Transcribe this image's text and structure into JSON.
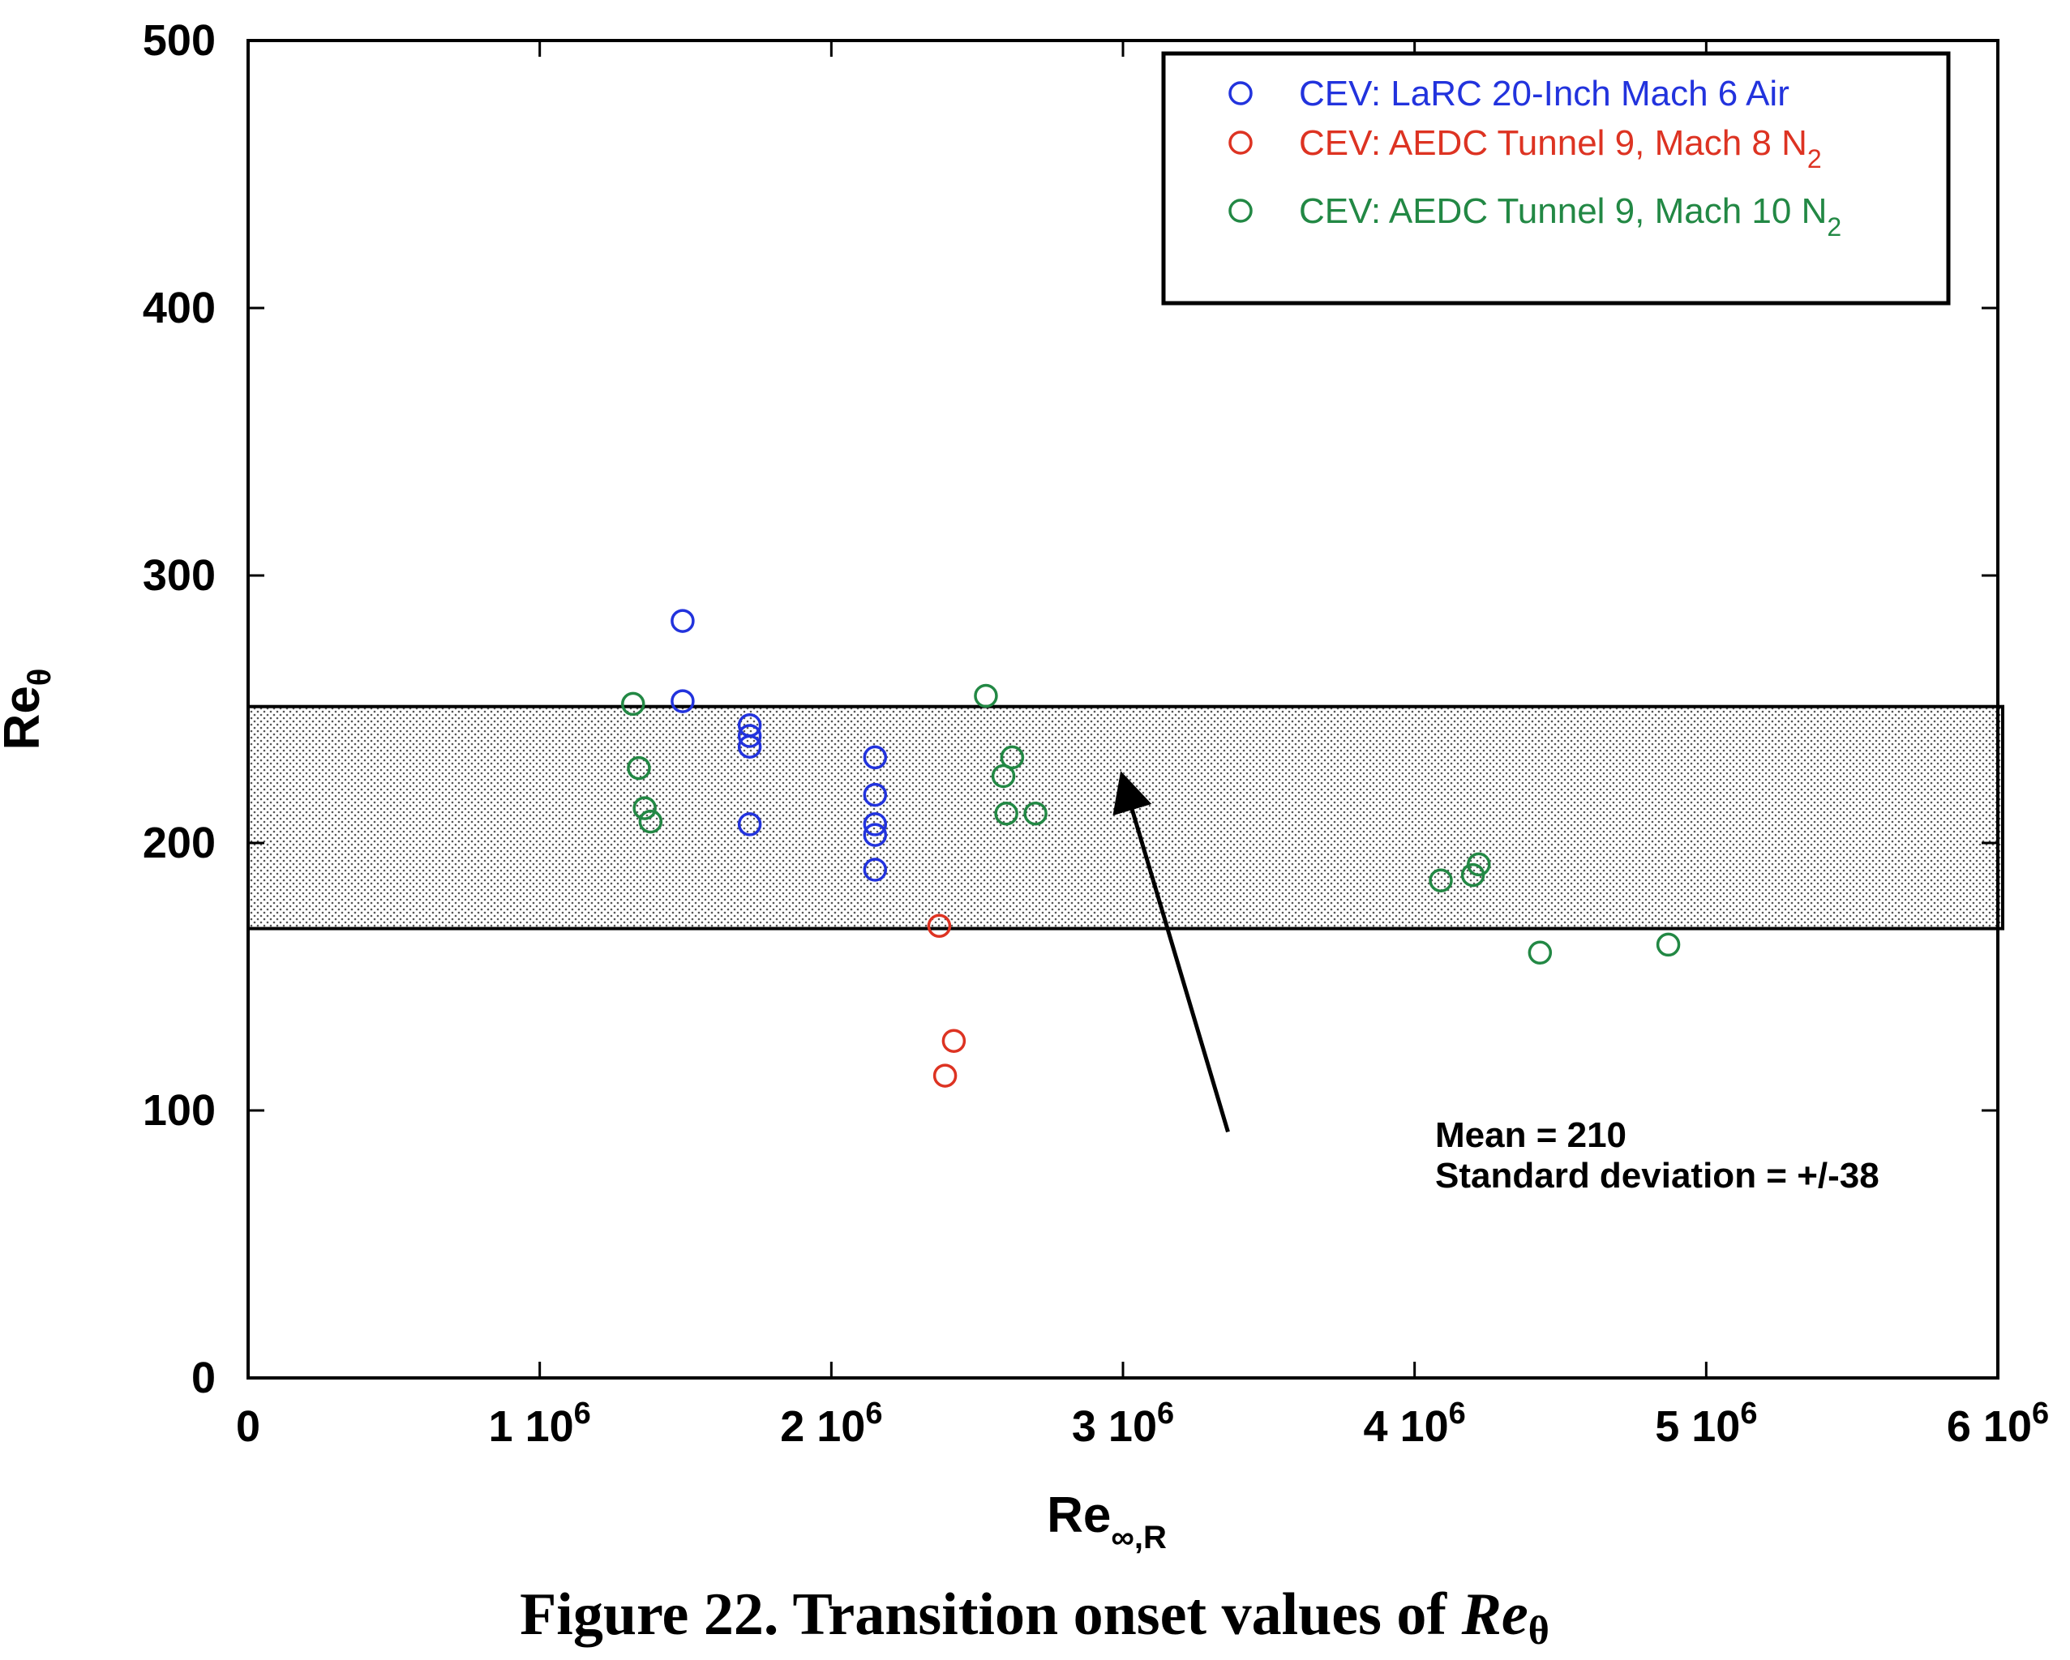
{
  "chart_data": {
    "type": "scatter",
    "xlim": [
      0,
      6000000
    ],
    "ylim": [
      0,
      500
    ],
    "x_ticks": [
      0,
      1000000,
      2000000,
      3000000,
      4000000,
      5000000,
      6000000
    ],
    "x_tick_labels": [
      {
        "base": "0",
        "exp": ""
      },
      {
        "base": "1 10",
        "exp": "6"
      },
      {
        "base": "2 10",
        "exp": "6"
      },
      {
        "base": "3 10",
        "exp": "6"
      },
      {
        "base": "4 10",
        "exp": "6"
      },
      {
        "base": "5 10",
        "exp": "6"
      },
      {
        "base": "6 10",
        "exp": "6"
      }
    ],
    "y_ticks": [
      0,
      100,
      200,
      300,
      400,
      500
    ],
    "y_tick_labels": [
      "0",
      "100",
      "200",
      "300",
      "400",
      "500"
    ],
    "xlabel": {
      "base": "Re",
      "sub": "∞,R"
    },
    "ylabel": {
      "base": "Re",
      "sub": "θ"
    },
    "grid": false,
    "legend_position": "top-right",
    "series": [
      {
        "name": "CEV: LaRC 20-Inch Mach 6 Air",
        "name_base": "CEV: LaRC 20-Inch Mach 6 Air",
        "name_sub": "",
        "color": "#2233dd",
        "points": [
          [
            1490000,
            283
          ],
          [
            1490000,
            253
          ],
          [
            1720000,
            244
          ],
          [
            1720000,
            240
          ],
          [
            1720000,
            236
          ],
          [
            1720000,
            207
          ],
          [
            2150000,
            232
          ],
          [
            2150000,
            218
          ],
          [
            2150000,
            207
          ],
          [
            2150000,
            203
          ],
          [
            2150000,
            190
          ]
        ]
      },
      {
        "name": "CEV: AEDC Tunnel 9, Mach 8 N2",
        "name_base": "CEV: AEDC Tunnel 9, Mach 8 N",
        "name_sub": "2",
        "color": "#dd3322",
        "points": [
          [
            2370000,
            169
          ],
          [
            2420000,
            126
          ],
          [
            2390000,
            113
          ]
        ]
      },
      {
        "name": "CEV: AEDC Tunnel 9, Mach 10 N2",
        "name_base": "CEV: AEDC Tunnel 9, Mach 10 N",
        "name_sub": "2",
        "color": "#228844",
        "points": [
          [
            1320000,
            252
          ],
          [
            1340000,
            228
          ],
          [
            1360000,
            213
          ],
          [
            1380000,
            208
          ],
          [
            2530000,
            255
          ],
          [
            2620000,
            232
          ],
          [
            2590000,
            225
          ],
          [
            2600000,
            211
          ],
          [
            2700000,
            211
          ],
          [
            4090000,
            186
          ],
          [
            4200000,
            188
          ],
          [
            4220000,
            192
          ],
          [
            4430000,
            159
          ],
          [
            4870000,
            162
          ]
        ]
      }
    ],
    "band": {
      "y_low": 168,
      "y_high": 251
    },
    "annotation": {
      "lines": [
        "Mean = 210",
        "Standard deviation = +/-38"
      ],
      "arrow_from": [
        3360000,
        92
      ],
      "arrow_to": [
        3000000,
        224
      ]
    }
  },
  "caption": {
    "prefix": "Figure 22.  Transition onset values of ",
    "italic": "Re",
    "sub": "θ"
  }
}
